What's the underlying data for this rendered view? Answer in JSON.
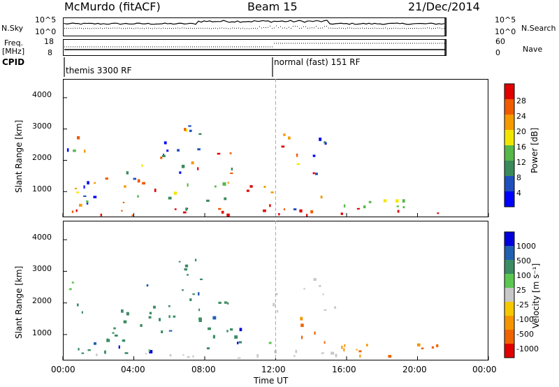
{
  "header": {
    "station": "McMurdo (fitACF)",
    "beam": "Beam 15",
    "date": "21/Dec/2014"
  },
  "top_panels": {
    "nsky_label": "N.Sky",
    "nsky_ticks": [
      "10^5",
      "10^0"
    ],
    "nsearch_label": "N.Search",
    "nsearch_ticks": [
      "10^5",
      "10^0"
    ],
    "freq_label": "Freq.",
    "freq_unit": "[MHz]",
    "freq_ticks": [
      "18",
      "8"
    ],
    "nave_label": "Nave",
    "nave_ticks": [
      "60",
      "0"
    ],
    "cpid_label": "CPID",
    "cpid_modes": [
      "themis 3300 RF",
      "normal (fast) 151 RF"
    ]
  },
  "chart_data": [
    {
      "type": "heatmap",
      "name": "power",
      "ylabel": "Slant Range [km]",
      "yticks": [
        "1000",
        "2000",
        "3000",
        "4000"
      ],
      "ylim": [
        180,
        4600
      ],
      "xlim": [
        0,
        24
      ],
      "colorbar_label": "Power [dB]",
      "colorbar_ticks": [
        "4",
        "8",
        "12",
        "16",
        "20",
        "24",
        "28"
      ],
      "colors": [
        "#0000ff",
        "#1f4fbf",
        "#3a8a5a",
        "#55b848",
        "#f2e600",
        "#f59a00",
        "#f05a00",
        "#e00000"
      ]
    },
    {
      "type": "heatmap",
      "name": "velocity",
      "ylabel": "Slant Range [km]",
      "yticks": [
        "1000",
        "2000",
        "3000",
        "4000"
      ],
      "ylim": [
        180,
        4600
      ],
      "xlim": [
        0,
        24
      ],
      "xlabel": "Time UT",
      "xticks": [
        "00:00",
        "04:00",
        "08:00",
        "12:00",
        "16:00",
        "20:00",
        "00:00"
      ],
      "colorbar_label": "Velocity [m s⁻¹]",
      "colorbar_ticks": [
        "1000",
        "500",
        "100",
        "25",
        "-25",
        "-100",
        "-500",
        "-1000"
      ],
      "colors": [
        "#0000dd",
        "#2060b0",
        "#3c8c64",
        "#5ac850",
        "#c8c8c8",
        "#f5c800",
        "#f59600",
        "#f06400",
        "#e00000"
      ]
    }
  ]
}
